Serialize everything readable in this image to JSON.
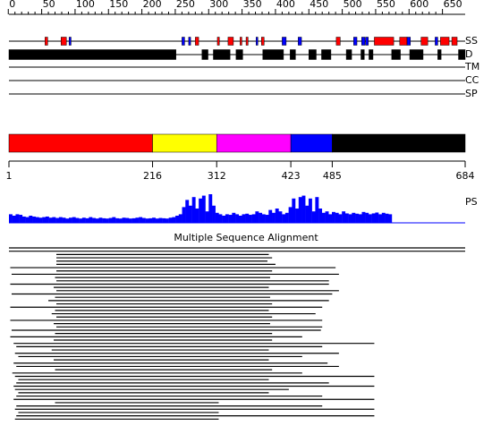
{
  "ruler": {
    "ticks": [
      0,
      50,
      100,
      150,
      200,
      250,
      300,
      350,
      400,
      450,
      500,
      550,
      600,
      650
    ]
  },
  "tracks": [
    {
      "label": "SS",
      "helix": [
        [
          55,
          59
        ],
        [
          79,
          87
        ],
        [
          280,
          285
        ],
        [
          313,
          316
        ],
        [
          329,
          337
        ],
        [
          347,
          349
        ],
        [
          356,
          359
        ],
        [
          379,
          383
        ],
        [
          491,
          497
        ],
        [
          548,
          577
        ],
        [
          586,
          597
        ],
        [
          618,
          628
        ],
        [
          647,
          660
        ],
        [
          664,
          672
        ]
      ],
      "strand": [
        [
          91,
          94
        ],
        [
          260,
          264
        ],
        [
          270,
          273
        ],
        [
          371,
          373
        ],
        [
          410,
          416
        ],
        [
          434,
          439
        ],
        [
          517,
          522
        ],
        [
          529,
          534
        ],
        [
          535,
          539
        ],
        [
          597,
          602
        ],
        [
          639,
          643
        ]
      ]
    },
    {
      "label": "D",
      "segments": [
        [
          1,
          251
        ],
        [
          290,
          299
        ],
        [
          307,
          332
        ],
        [
          341,
          351
        ],
        [
          381,
          412
        ],
        [
          422,
          430
        ],
        [
          450,
          461
        ],
        [
          469,
          483
        ],
        [
          506,
          514
        ],
        [
          528,
          533
        ],
        [
          540,
          546
        ],
        [
          574,
          587
        ],
        [
          601,
          621
        ],
        [
          643,
          648
        ],
        [
          674,
          684
        ]
      ]
    },
    {
      "label": "TM"
    },
    {
      "label": "CC"
    },
    {
      "label": "SP"
    }
  ],
  "domains": {
    "boundaries": [
      1,
      216,
      312,
      423,
      485,
      684
    ],
    "colors": [
      "#ff0000",
      "#ffff00",
      "#ff00ff",
      "#0000ff",
      "#000000"
    ]
  },
  "ps": {
    "label": "PS",
    "values": [
      0.3,
      0.25,
      0.3,
      0.28,
      0.22,
      0.2,
      0.25,
      0.22,
      0.2,
      0.18,
      0.2,
      0.22,
      0.18,
      0.2,
      0.17,
      0.2,
      0.18,
      0.15,
      0.18,
      0.2,
      0.17,
      0.15,
      0.18,
      0.16,
      0.2,
      0.17,
      0.15,
      0.18,
      0.16,
      0.15,
      0.17,
      0.2,
      0.16,
      0.15,
      0.18,
      0.17,
      0.15,
      0.16,
      0.18,
      0.2,
      0.17,
      0.15,
      0.16,
      0.18,
      0.15,
      0.17,
      0.16,
      0.15,
      0.18,
      0.2,
      0.25,
      0.3,
      0.55,
      0.8,
      0.6,
      0.9,
      0.5,
      0.85,
      0.95,
      0.4,
      1.0,
      0.6,
      0.35,
      0.3,
      0.25,
      0.3,
      0.28,
      0.35,
      0.3,
      0.25,
      0.3,
      0.32,
      0.28,
      0.3,
      0.4,
      0.35,
      0.3,
      0.28,
      0.45,
      0.35,
      0.5,
      0.4,
      0.3,
      0.35,
      0.55,
      0.85,
      0.5,
      0.9,
      0.95,
      0.6,
      0.85,
      0.4,
      0.9,
      0.5,
      0.35,
      0.4,
      0.3,
      0.38,
      0.35,
      0.3,
      0.4,
      0.33,
      0.3,
      0.35,
      0.32,
      0.3,
      0.38,
      0.35,
      0.3,
      0.33,
      0.36,
      0.3,
      0.35,
      0.32,
      0.3
    ]
  },
  "msa": {
    "title": "Multiple Sequence Alignment",
    "hits": [
      [
        1,
        684
      ],
      [
        1,
        684
      ],
      [
        72,
        390
      ],
      [
        72,
        395
      ],
      [
        72,
        388
      ],
      [
        72,
        400
      ],
      [
        3,
        490
      ],
      [
        72,
        395
      ],
      [
        5,
        495
      ],
      [
        70,
        392
      ],
      [
        72,
        480
      ],
      [
        3,
        480
      ],
      [
        68,
        390
      ],
      [
        72,
        495
      ],
      [
        5,
        485
      ],
      [
        70,
        392
      ],
      [
        60,
        480
      ],
      [
        72,
        395
      ],
      [
        3,
        470
      ],
      [
        70,
        390
      ],
      [
        65,
        460
      ],
      [
        72,
        395
      ],
      [
        3,
        470
      ],
      [
        68,
        392
      ],
      [
        72,
        470
      ],
      [
        5,
        468
      ],
      [
        70,
        395
      ],
      [
        3,
        440
      ],
      [
        68,
        395
      ],
      [
        8,
        548
      ],
      [
        12,
        470
      ],
      [
        65,
        390
      ],
      [
        10,
        495
      ],
      [
        15,
        440
      ],
      [
        68,
        390
      ],
      [
        8,
        478
      ],
      [
        12,
        495
      ],
      [
        70,
        395
      ],
      [
        6,
        440
      ],
      [
        10,
        548
      ],
      [
        15,
        390
      ],
      [
        12,
        480
      ],
      [
        8,
        548
      ],
      [
        10,
        420
      ],
      [
        15,
        390
      ],
      [
        12,
        470
      ],
      [
        8,
        548
      ],
      [
        70,
        315
      ],
      [
        12,
        470
      ],
      [
        10,
        548
      ],
      [
        15,
        315
      ],
      [
        12,
        548
      ],
      [
        10,
        315
      ]
    ]
  }
}
